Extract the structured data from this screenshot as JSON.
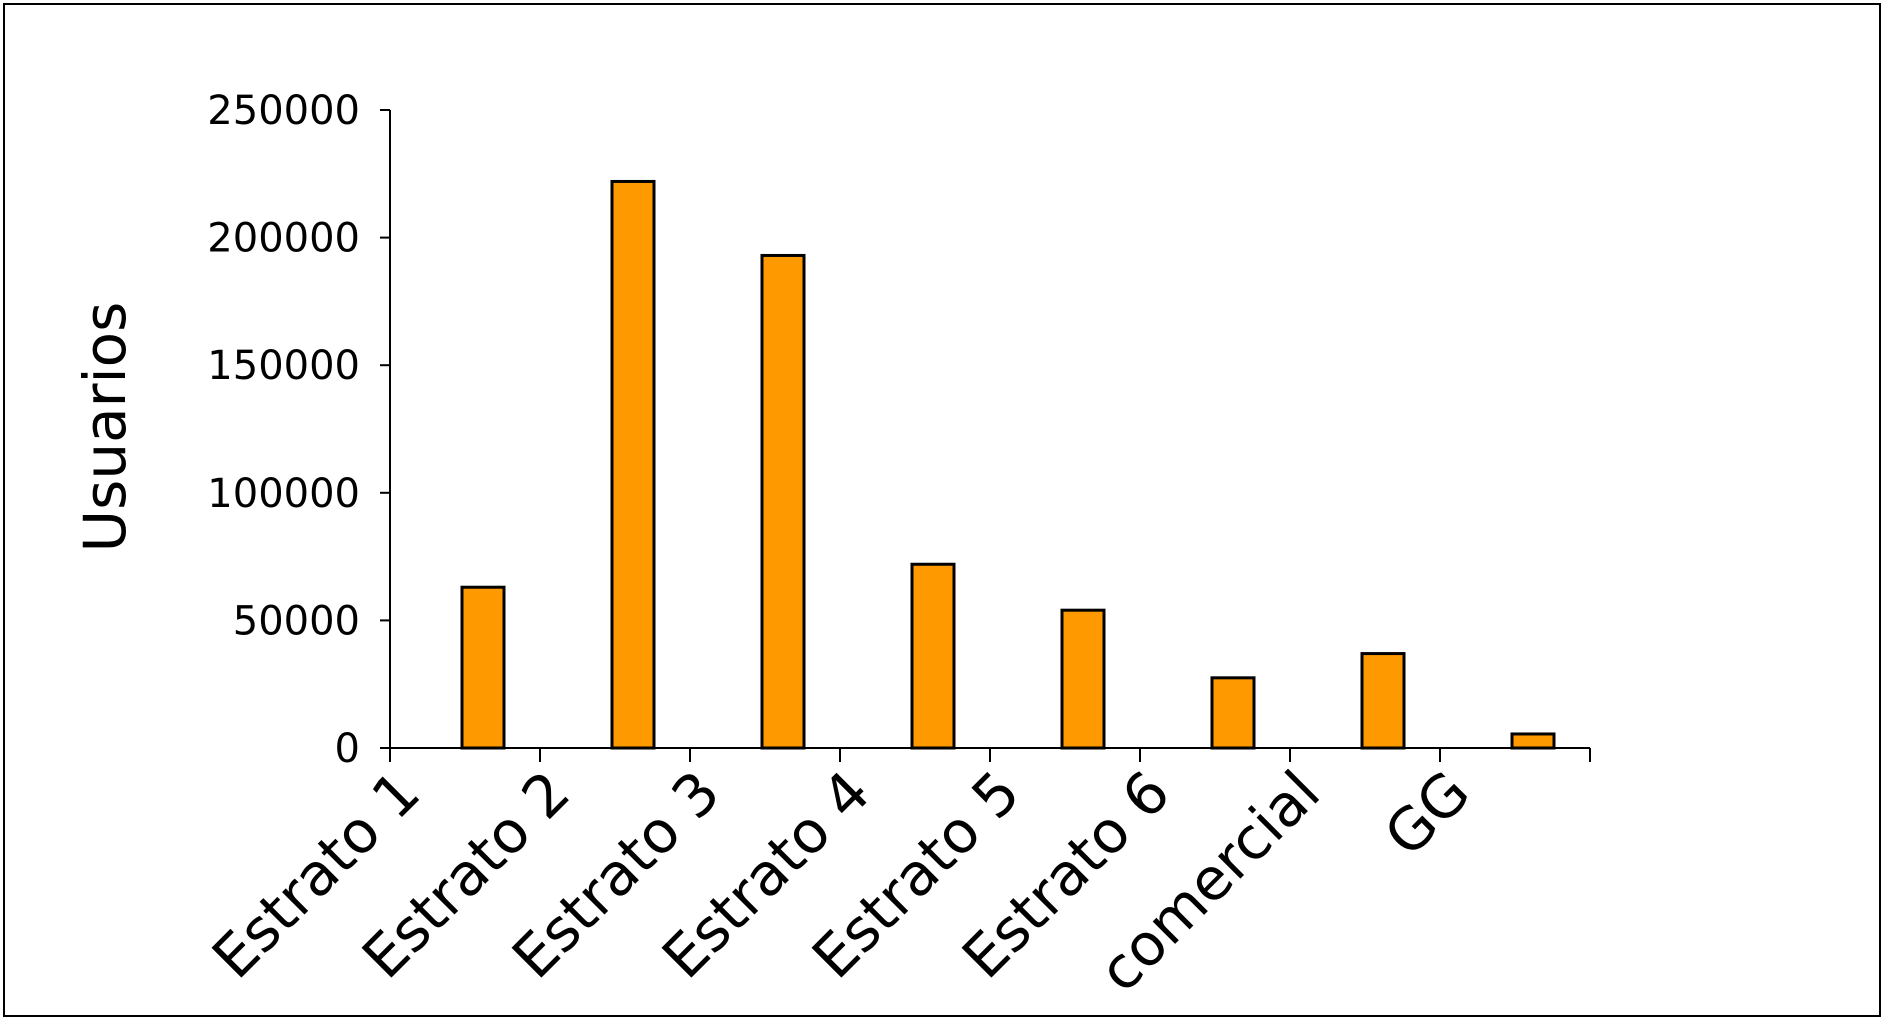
{
  "chart_data": {
    "type": "bar",
    "title": "",
    "xlabel": "",
    "ylabel": "Usuarios",
    "categories": [
      "Estrato 1",
      "Estrato 2",
      "Estrato 3",
      "Estrato 4",
      "Estrato 5",
      "Estrato 6",
      "comercial",
      "GG"
    ],
    "values": [
      63000,
      222000,
      193000,
      72000,
      54000,
      27500,
      37000,
      5500
    ],
    "ylim": [
      0,
      250000
    ],
    "yticks": [
      0,
      50000,
      100000,
      150000,
      200000,
      250000
    ],
    "grid": false,
    "legend": "none",
    "bar_color": "#ff9900",
    "bar_edge_color": "#000000"
  }
}
